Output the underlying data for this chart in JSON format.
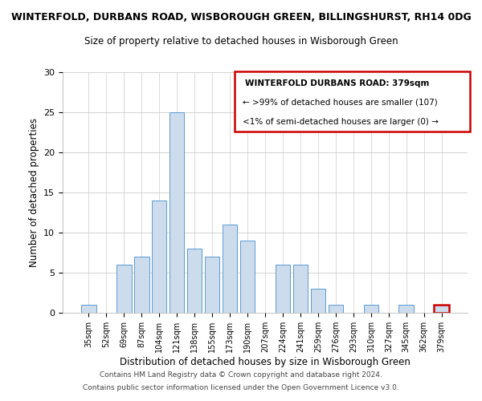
{
  "title": "WINTERFOLD, DURBANS ROAD, WISBOROUGH GREEN, BILLINGSHURST, RH14 0DG",
  "subtitle": "Size of property relative to detached houses in Wisborough Green",
  "xlabel": "Distribution of detached houses by size in Wisborough Green",
  "ylabel": "Number of detached properties",
  "bar_color": "#ccdcec",
  "bar_edge_color": "#5b9bd5",
  "categories": [
    "35sqm",
    "52sqm",
    "69sqm",
    "87sqm",
    "104sqm",
    "121sqm",
    "138sqm",
    "155sqm",
    "173sqm",
    "190sqm",
    "207sqm",
    "224sqm",
    "241sqm",
    "259sqm",
    "276sqm",
    "293sqm",
    "310sqm",
    "327sqm",
    "345sqm",
    "362sqm",
    "379sqm"
  ],
  "values": [
    1,
    0,
    6,
    7,
    14,
    25,
    8,
    7,
    11,
    9,
    0,
    6,
    6,
    3,
    1,
    0,
    1,
    0,
    1,
    0,
    1
  ],
  "ylim": [
    0,
    30
  ],
  "yticks": [
    0,
    5,
    10,
    15,
    20,
    25,
    30
  ],
  "legend_title": "WINTERFOLD DURBANS ROAD: 379sqm",
  "legend_line1": "← >99% of detached houses are smaller (107)",
  "legend_line2": "<1% of semi-detached houses are larger (0) →",
  "legend_box_color": "#cc0000",
  "footer_line1": "Contains HM Land Registry data © Crown copyright and database right 2024.",
  "footer_line2": "Contains public sector information licensed under the Open Government Licence v3.0.",
  "bg_color": "#ffffff",
  "grid_color": "#cccccc",
  "highlight_bar_index": 20
}
